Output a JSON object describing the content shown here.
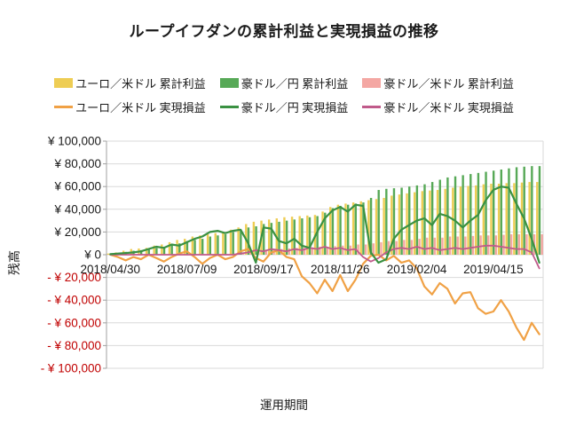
{
  "title": "ループイフダンの累計利益と実現損益の推移",
  "colors": {
    "text": "#1a1a1a",
    "negative_label": "#c00000",
    "grid": "#d9d9d9",
    "axis": "#a0a0a0",
    "eur_usd_cumulative": "#eecd54",
    "aud_jpy_cumulative": "#57a957",
    "aud_usd_cumulative": "#f4a7a3",
    "eur_usd_realized": "#f0a145",
    "aud_jpy_realized": "#3a9142",
    "aud_usd_realized": "#c05a8a"
  },
  "legend": {
    "cumulative": [
      {
        "label": "ユーロ／米ドル 累計利益",
        "color": "#eecd54"
      },
      {
        "label": "豪ドル／円 累計利益",
        "color": "#57a957"
      },
      {
        "label": "豪ドル／米ドル 累計利益",
        "color": "#f4a7a3"
      }
    ],
    "realized": [
      {
        "label": "ユーロ／米ドル 実現損益",
        "color": "#f0a145"
      },
      {
        "label": "豪ドル／円 実現損益",
        "color": "#3a9142"
      },
      {
        "label": "豪ドル／米ドル 実現損益",
        "color": "#c05a8a"
      }
    ]
  },
  "y_axis": {
    "title": "残高",
    "min": -100000,
    "max": 100000,
    "step": 20000,
    "positive_prefix": "¥ ",
    "negative_prefix": "- ¥ "
  },
  "x_axis": {
    "title": "運用期間",
    "tick_labels": [
      "2018/04/30",
      "2018/07/09",
      "2018/09/17",
      "2018/11/26",
      "2019/02/04",
      "2019/04/15"
    ]
  },
  "chart_data": {
    "type": "combo_bar_line",
    "title": "ループイフダンの累計利益と実現損益の推移",
    "xlabel": "運用期間",
    "ylabel": "残高",
    "ylim": [
      -100000,
      100000
    ],
    "y_step": 20000,
    "grid": true,
    "legend_position": "top",
    "n_points": 57,
    "x_frequency": "weekly",
    "x_tick_positions": [
      0,
      10,
      20,
      30,
      40,
      50
    ],
    "x_tick_labels": [
      "2018/04/30",
      "2018/07/09",
      "2018/09/17",
      "2018/11/26",
      "2019/02/04",
      "2019/04/15"
    ],
    "series": [
      {
        "key": "eur_usd_cumulative",
        "name": "ユーロ／米ドル 累計利益",
        "type": "bar",
        "color": "#eecd54",
        "values": [
          1000,
          2000,
          3500,
          5000,
          5500,
          6000,
          8000,
          9000,
          11000,
          13000,
          14000,
          16000,
          17000,
          18000,
          19000,
          20000,
          22000,
          24000,
          27000,
          29000,
          30000,
          31000,
          32000,
          33000,
          33500,
          34000,
          34500,
          35000,
          38000,
          42000,
          44000,
          45000,
          46000,
          47000,
          48000,
          49000,
          50000,
          52000,
          53000,
          54000,
          55000,
          56000,
          56500,
          57000,
          58000,
          59000,
          60000,
          60500,
          61000,
          62000,
          62500,
          62500,
          63000,
          63000,
          63500,
          64000,
          64000
        ]
      },
      {
        "key": "aud_jpy_cumulative",
        "name": "豪ドル／円 累計利益",
        "type": "bar",
        "color": "#57a957",
        "values": [
          500,
          1500,
          2500,
          3500,
          4000,
          4500,
          6000,
          7000,
          9000,
          10000,
          12000,
          13000,
          14000,
          16000,
          17000,
          18000,
          20000,
          22000,
          24000,
          25000,
          27000,
          28000,
          29000,
          30000,
          31000,
          32000,
          33000,
          34000,
          37000,
          41000,
          43000,
          44000,
          45000,
          46000,
          50000,
          57000,
          58000,
          58500,
          59000,
          60000,
          61000,
          62000,
          64000,
          66000,
          68000,
          69000,
          70000,
          71000,
          72000,
          73000,
          74000,
          75000,
          76000,
          77000,
          77500,
          78000,
          78000
        ]
      },
      {
        "key": "aud_usd_cumulative",
        "name": "豪ドル／米ドル 累計利益",
        "type": "bar",
        "color": "#f4a7a3",
        "values": [
          0,
          0,
          0,
          0,
          0,
          0,
          0,
          0,
          0,
          0,
          0,
          0,
          0,
          0,
          0,
          0,
          0,
          1000,
          3000,
          4000,
          4500,
          5000,
          5000,
          5500,
          6000,
          6000,
          6500,
          7000,
          7000,
          7500,
          8000,
          8000,
          9000,
          9000,
          10000,
          11000,
          12000,
          12000,
          13000,
          13000,
          14000,
          15000,
          15000,
          15000,
          16000,
          16000,
          16000,
          16500,
          17000,
          17000,
          17000,
          17500,
          18000,
          18000,
          18000,
          18000,
          18000
        ]
      },
      {
        "key": "eur_usd_realized",
        "name": "ユーロ／米ドル 実現損益",
        "type": "line",
        "color": "#f0a145",
        "values": [
          0,
          -2000,
          -5000,
          -2000,
          -4000,
          0,
          -3000,
          -6000,
          -2000,
          1000,
          3000,
          -2000,
          -8000,
          -3000,
          0,
          -4000,
          -2000,
          3000,
          5000,
          -3000,
          -6000,
          2000,
          4000,
          -2000,
          -4000,
          -19000,
          -25000,
          -34000,
          -22000,
          -32000,
          -18000,
          -32000,
          -22000,
          -8000,
          -1000,
          0,
          -5000,
          -1000,
          -7000,
          -5000,
          -12000,
          -28000,
          -35000,
          -25000,
          -30000,
          -43000,
          -34000,
          -33000,
          -47000,
          -52000,
          -50000,
          -40000,
          -50000,
          -64000,
          -75000,
          -60000,
          -70000
        ]
      },
      {
        "key": "aud_jpy_realized",
        "name": "豪ドル／円 実現損益",
        "type": "line",
        "color": "#3a9142",
        "values": [
          500,
          1000,
          1500,
          2000,
          3000,
          5000,
          7000,
          6000,
          9000,
          8000,
          11000,
          14000,
          16000,
          20000,
          21000,
          19000,
          21000,
          22000,
          10000,
          -7000,
          24000,
          23000,
          12000,
          10000,
          14000,
          8000,
          6000,
          20000,
          32000,
          39000,
          42000,
          38000,
          44000,
          43000,
          2000,
          -7000,
          -4000,
          14000,
          22000,
          26000,
          30000,
          32000,
          26000,
          36000,
          34000,
          30000,
          24000,
          30000,
          35000,
          48000,
          57000,
          60000,
          59000,
          45000,
          32000,
          14000,
          -7000
        ]
      },
      {
        "key": "aud_usd_realized",
        "name": "豪ドル／米ドル 実現損益",
        "type": "line",
        "color": "#c05a8a",
        "values": [
          0,
          0,
          0,
          0,
          0,
          0,
          0,
          0,
          0,
          0,
          0,
          0,
          0,
          0,
          0,
          0,
          0,
          1000,
          2000,
          4000,
          3000,
          5000,
          4000,
          3000,
          5000,
          4000,
          6000,
          5000,
          7000,
          5000,
          6000,
          4000,
          5000,
          -2000,
          -6000,
          -3000,
          2000,
          5000,
          6000,
          5000,
          7000,
          5000,
          6000,
          4000,
          5000,
          6000,
          5000,
          6000,
          7000,
          8000,
          8000,
          7000,
          6000,
          5000,
          5000,
          2000,
          -12000
        ]
      }
    ]
  }
}
